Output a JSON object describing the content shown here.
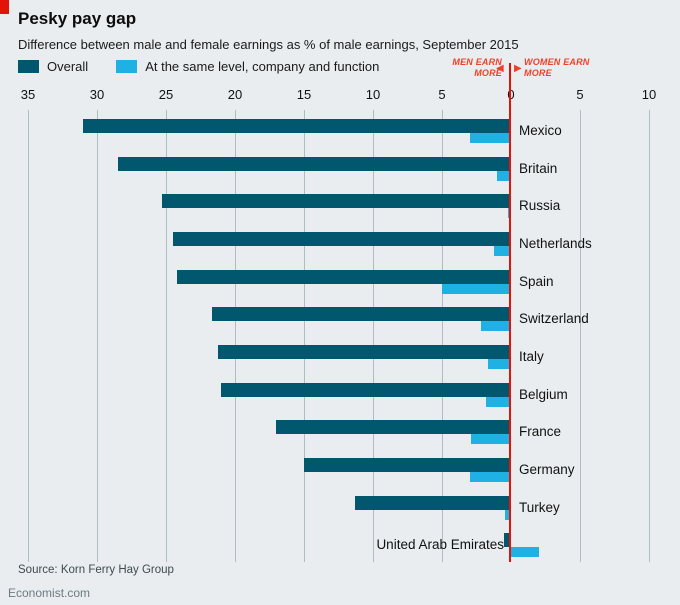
{
  "header": {
    "title": "Pesky pay gap",
    "subtitle": "Difference between male and female earnings as % of male earnings, September 2015"
  },
  "legend": [
    {
      "label": "Overall",
      "color": "#01586e"
    },
    {
      "label": "At the same level, company and function",
      "color": "#1fb0e4"
    }
  ],
  "annotations": {
    "left": "MEN EARN MORE",
    "right": "WOMEN EARN MORE",
    "left_arrow": "◀",
    "right_arrow": "▶",
    "color": "#ee4129"
  },
  "colors": {
    "background": "#e9edf0",
    "gridline": "#aebdc4",
    "zero_line": "#e3120b",
    "accent_red": "#e3120b"
  },
  "chart_data": {
    "type": "bar",
    "orientation": "horizontal-diverging",
    "title": "Pesky pay gap",
    "subtitle": "Difference between male and female earnings as % of male earnings, September 2015",
    "unit": "% of male earnings",
    "axis": {
      "min": -10,
      "max": 35,
      "grid": true,
      "ticks": [
        {
          "value": 35,
          "label": "35"
        },
        {
          "value": 30,
          "label": "30"
        },
        {
          "value": 25,
          "label": "25"
        },
        {
          "value": 20,
          "label": "20"
        },
        {
          "value": 15,
          "label": "15"
        },
        {
          "value": 10,
          "label": "10"
        },
        {
          "value": 5,
          "label": "5"
        },
        {
          "value": 0,
          "label": "0"
        },
        {
          "value": -5,
          "label": "5"
        },
        {
          "value": -10,
          "label": "10"
        }
      ]
    },
    "series_names": [
      "Overall",
      "At the same level, company and function"
    ],
    "countries": [
      {
        "label": "Mexico",
        "overall": 31,
        "same_level": 3
      },
      {
        "label": "Britain",
        "overall": 28.5,
        "same_level": 1
      },
      {
        "label": "Russia",
        "overall": 25.3,
        "same_level": 0.2
      },
      {
        "label": "Netherlands",
        "overall": 24.5,
        "same_level": 1.2
      },
      {
        "label": "Spain",
        "overall": 24.2,
        "same_level": 5
      },
      {
        "label": "Switzerland",
        "overall": 21.7,
        "same_level": 2.2
      },
      {
        "label": "Italy",
        "overall": 21.2,
        "same_level": 1.7
      },
      {
        "label": "Belgium",
        "overall": 21,
        "same_level": 1.8
      },
      {
        "label": "France",
        "overall": 17,
        "same_level": 2.9
      },
      {
        "label": "Germany",
        "overall": 15,
        "same_level": 3
      },
      {
        "label": "Turkey",
        "overall": 11.3,
        "same_level": 0.4
      },
      {
        "label": "United Arab Emirates",
        "overall": 0.5,
        "same_level": -2,
        "label_side": "left"
      }
    ]
  },
  "footer": {
    "source": "Source: Korn Ferry Hay Group",
    "brand": "Economist.com"
  }
}
